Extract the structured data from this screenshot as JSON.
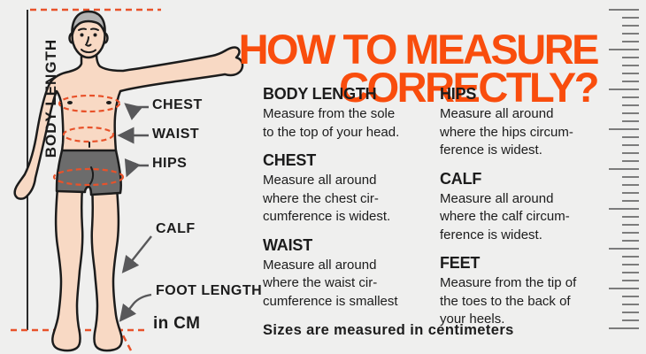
{
  "palette": {
    "background": "#efefee",
    "orange": "#f94d0d",
    "dash_orange": "#e8522a",
    "ink": "#1c1c1c",
    "arrow_gray": "#58585a",
    "ruler_gray": "#7c7c7c",
    "skin": "#f8d9c4",
    "hair": "#b3b3b3",
    "shorts": "#6c6c6c"
  },
  "title": {
    "lines": [
      "HOW TO MEASURE",
      "CORRECTLY?"
    ]
  },
  "figure": {
    "vertical_label": "BODY LENGTH",
    "labels": {
      "chest": "CHEST",
      "waist": "WAIST",
      "hips": "HIPS",
      "calf": "CALF",
      "foot_length": "FOOT LENGTH",
      "unit": "in CM"
    }
  },
  "columns": [
    {
      "sections": [
        {
          "title": "BODY LENGTH",
          "body_lines": [
            "Measure from the sole",
            "to the top of your head."
          ]
        },
        {
          "title": "CHEST",
          "body_lines": [
            "Measure all around",
            "where the chest cir-",
            "cumference is widest."
          ]
        },
        {
          "title": "WAIST",
          "body_lines": [
            "Measure all around",
            "where the waist cir-",
            "cumference is smallest"
          ]
        }
      ]
    },
    {
      "sections": [
        {
          "title": "HIPS",
          "body_lines": [
            "Measure all around",
            "where the hips circum-",
            "ference is widest."
          ]
        },
        {
          "title": "CALF",
          "body_lines": [
            "Measure all around",
            "where the calf circum-",
            "ference is widest."
          ]
        },
        {
          "title": "FEET",
          "body_lines": [
            "Measure from the tip of",
            "the toes to the back of",
            "your heels."
          ]
        }
      ]
    }
  ],
  "footer": "Sizes are measured in centimeters",
  "ruler": {
    "total_ticks": 41,
    "long_every": 5
  }
}
